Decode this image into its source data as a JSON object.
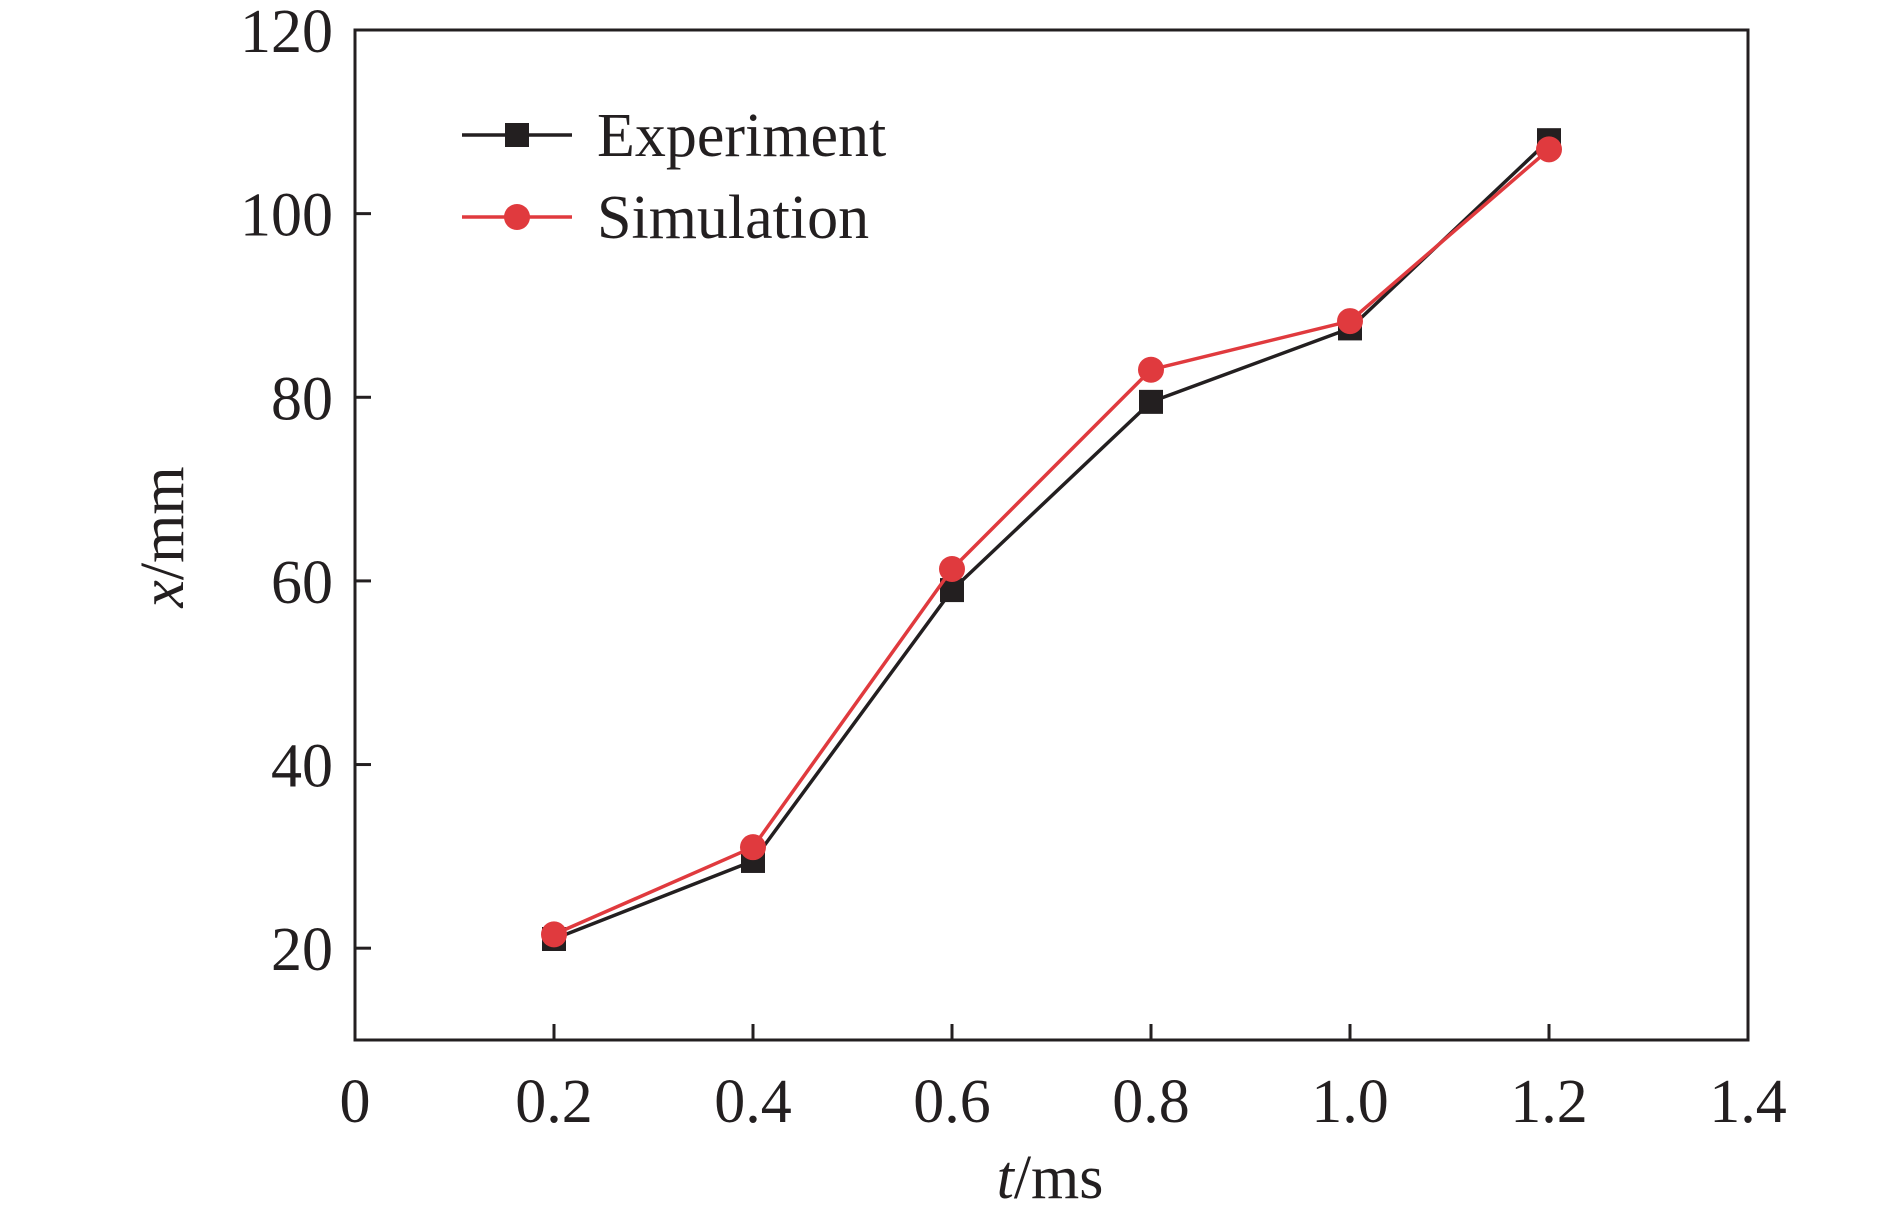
{
  "chart_data": {
    "type": "line",
    "xlabel": {
      "var": "t",
      "unit": "/ms"
    },
    "ylabel": {
      "var": "x",
      "unit": "/mm"
    },
    "xlim": [
      0,
      1.4
    ],
    "ylim": [
      10,
      120
    ],
    "x_ticks": [
      0,
      0.2,
      0.4,
      0.6,
      0.8,
      1.0,
      1.2,
      1.4
    ],
    "x_tick_labels": [
      "0",
      "0.2",
      "0.4",
      "0.6",
      "0.8",
      "1.0",
      "1.2",
      "1.4"
    ],
    "y_ticks": [
      20,
      40,
      60,
      80,
      100,
      120
    ],
    "y_tick_labels": [
      "20",
      "40",
      "60",
      "80",
      "100",
      "120"
    ],
    "grid": false,
    "legend_position": "top-left",
    "x": [
      0.2,
      0.4,
      0.6,
      0.8,
      1.0,
      1.2
    ],
    "series": [
      {
        "name": "Experiment",
        "values": [
          21,
          29.5,
          59,
          79.5,
          87.5,
          108
        ],
        "color": "#231f20",
        "marker": "square"
      },
      {
        "name": "Simulation",
        "values": [
          21.5,
          31,
          61.3,
          83,
          88.3,
          107
        ],
        "color": "#e03a3e",
        "marker": "circle"
      }
    ]
  }
}
